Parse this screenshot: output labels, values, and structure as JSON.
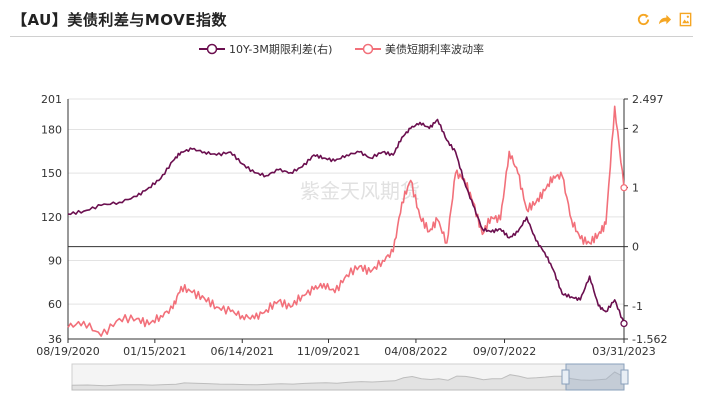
{
  "title": "【AU】美债利差与MOVE指数",
  "toolbar": {
    "icons": [
      "refresh-icon",
      "share-icon",
      "save-image-icon"
    ],
    "accent": "#f5a623"
  },
  "watermark": "紫金天风期货",
  "chart_data": {
    "type": "line",
    "legend_position": "top-center",
    "grid": "horizontal",
    "x_ticks": [
      "08/19/2020",
      "01/15/2021",
      "06/14/2021",
      "11/09/2021",
      "04/08/2022",
      "09/07/2022",
      "03/31/2023"
    ],
    "left_axis": {
      "ticks": [
        "201",
        "180",
        "150",
        "120",
        "90",
        "60",
        "36"
      ],
      "range": [
        36,
        201
      ]
    },
    "right_axis": {
      "ticks": [
        "2.497",
        "2",
        "1",
        "0",
        "-1",
        "-1.562"
      ],
      "range": [
        -1.562,
        2.497
      ]
    },
    "series": [
      {
        "name": "10Y-3M期限利差(右)",
        "axis": "right",
        "color": "#6b0f4f",
        "x": [
          "2020-08-19",
          "2020-09-15",
          "2020-10-15",
          "2020-11-15",
          "2020-12-15",
          "2021-01-05",
          "2021-01-25",
          "2021-02-15",
          "2021-03-01",
          "2021-03-20",
          "2021-04-10",
          "2021-05-01",
          "2021-05-25",
          "2021-06-14",
          "2021-07-05",
          "2021-07-25",
          "2021-08-15",
          "2021-09-05",
          "2021-09-25",
          "2021-10-15",
          "2021-11-01",
          "2021-11-20",
          "2021-12-10",
          "2022-01-01",
          "2022-01-20",
          "2022-02-10",
          "2022-02-28",
          "2022-03-15",
          "2022-03-30",
          "2022-04-15",
          "2022-05-01",
          "2022-05-15",
          "2022-05-31",
          "2022-06-15",
          "2022-06-30",
          "2022-07-15",
          "2022-07-31",
          "2022-08-15",
          "2022-08-31",
          "2022-09-15",
          "2022-09-30",
          "2022-10-15",
          "2022-10-31",
          "2022-11-15",
          "2022-11-30",
          "2022-12-15",
          "2022-12-31",
          "2023-01-15",
          "2023-01-31",
          "2023-02-15",
          "2023-02-28",
          "2023-03-15",
          "2023-03-31"
        ],
        "values": [
          0.55,
          0.6,
          0.7,
          0.75,
          0.85,
          1.0,
          1.15,
          1.45,
          1.6,
          1.65,
          1.6,
          1.55,
          1.6,
          1.4,
          1.25,
          1.2,
          1.3,
          1.25,
          1.35,
          1.55,
          1.5,
          1.45,
          1.55,
          1.6,
          1.5,
          1.6,
          1.55,
          1.85,
          2.0,
          2.1,
          2.0,
          2.15,
          1.8,
          1.6,
          1.1,
          0.7,
          0.3,
          0.25,
          0.3,
          0.15,
          0.25,
          0.5,
          0.1,
          -0.1,
          -0.4,
          -0.8,
          -0.85,
          -0.9,
          -0.5,
          -1.0,
          -1.1,
          -0.9,
          -1.3
        ]
      },
      {
        "name": "美债短期利率波动率",
        "axis": "left",
        "color": "#f2707a",
        "x": [
          "2020-08-19",
          "2020-09-15",
          "2020-10-15",
          "2020-11-15",
          "2020-12-15",
          "2021-01-05",
          "2021-01-25",
          "2021-02-15",
          "2021-03-01",
          "2021-03-20",
          "2021-04-10",
          "2021-05-01",
          "2021-05-25",
          "2021-06-14",
          "2021-07-05",
          "2021-07-25",
          "2021-08-15",
          "2021-09-05",
          "2021-09-25",
          "2021-10-15",
          "2021-11-01",
          "2021-11-20",
          "2021-12-10",
          "2022-01-01",
          "2022-01-20",
          "2022-02-10",
          "2022-02-28",
          "2022-03-15",
          "2022-03-30",
          "2022-04-15",
          "2022-05-01",
          "2022-05-15",
          "2022-05-31",
          "2022-06-15",
          "2022-06-30",
          "2022-07-15",
          "2022-07-31",
          "2022-08-15",
          "2022-08-31",
          "2022-09-15",
          "2022-09-30",
          "2022-10-15",
          "2022-10-31",
          "2022-11-15",
          "2022-11-30",
          "2022-12-15",
          "2022-12-31",
          "2023-01-15",
          "2023-01-31",
          "2023-02-15",
          "2023-02-28",
          "2023-03-15",
          "2023-03-31"
        ],
        "values": [
          44,
          48,
          38,
          50,
          50,
          46,
          52,
          57,
          72,
          68,
          64,
          58,
          55,
          52,
          50,
          56,
          62,
          58,
          66,
          70,
          74,
          68,
          80,
          86,
          82,
          90,
          96,
          130,
          145,
          120,
          110,
          118,
          102,
          150,
          146,
          130,
          108,
          120,
          118,
          165,
          150,
          125,
          130,
          138,
          148,
          148,
          118,
          105,
          102,
          108,
          115,
          196,
          140
        ]
      }
    ]
  }
}
